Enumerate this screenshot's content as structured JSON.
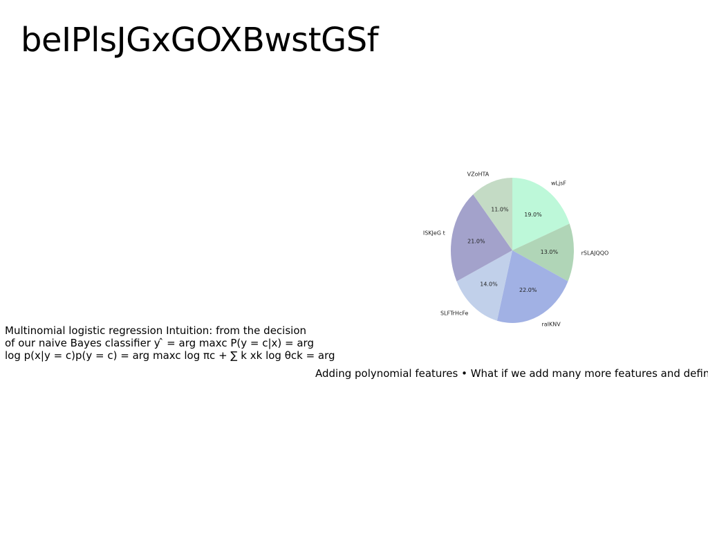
{
  "slide": {
    "title": "beIPlsJGxGOXBwstGSf",
    "left_lines": [
      "Multinomial logistic regression Intuition: from the decision",
      "of our naive Bayes classifier y ̂ = arg maxc P(y = c|x) = arg",
      "log p(x|y = c)p(y = c) = arg maxc log πc + ∑ k xk log θck = arg"
    ],
    "right_line": "Adding polynomial features • What if we add many more features and define x"
  },
  "chart_data": {
    "type": "pie",
    "start_angle_deg": 90,
    "direction": "clockwise",
    "categories": [
      "wLjsF",
      "rSLAJQQO",
      "raIKNV",
      "SLFTrHcFe",
      "ISKJeG t",
      "VZoHTA"
    ],
    "values": [
      19.0,
      13.0,
      22.0,
      14.0,
      21.0,
      11.0
    ],
    "labels": [
      "19.0%",
      "13.0%",
      "22.0%",
      "14.0%",
      "21.0%",
      "11.0%"
    ],
    "colors": [
      "#bdf8d9",
      "#b0d5b7",
      "#a1b1e4",
      "#c1d0ea",
      "#a3a2cb",
      "#c4dbc5"
    ]
  }
}
